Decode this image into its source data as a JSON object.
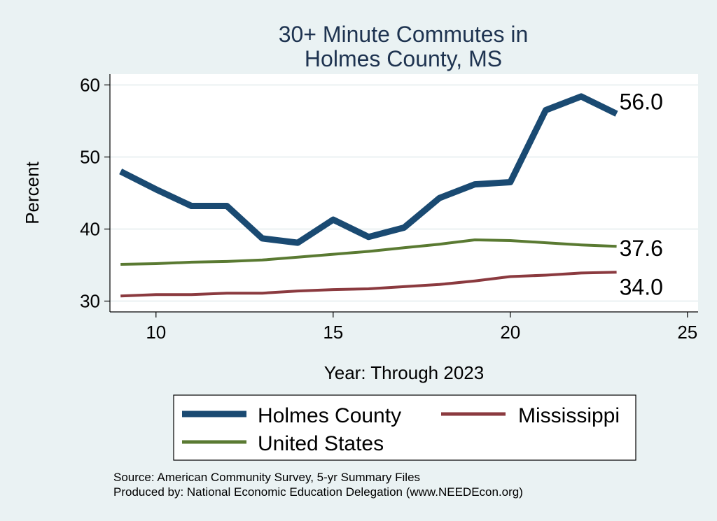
{
  "chart_data": {
    "type": "line",
    "title": [
      "30+ Minute Commutes in",
      "Holmes County, MS"
    ],
    "xlabel": "Year: Through 2023",
    "ylabel": "Percent",
    "xlim": [
      8.7,
      25.3
    ],
    "ylim": [
      28.5,
      61.5
    ],
    "xticks": [
      10,
      15,
      20,
      25
    ],
    "yticks": [
      30,
      40,
      50,
      60
    ],
    "x": [
      9,
      10,
      11,
      12,
      13,
      14,
      15,
      16,
      17,
      18,
      19,
      20,
      21,
      22,
      23
    ],
    "series": [
      {
        "name": "Holmes County",
        "color": "#1a4a72",
        "values": [
          48.0,
          45.5,
          43.2,
          43.2,
          38.7,
          38.1,
          41.3,
          38.9,
          40.2,
          44.3,
          46.2,
          46.5,
          56.5,
          58.4,
          56.0
        ],
        "end_label": "56.0"
      },
      {
        "name": "Mississippi",
        "color": "#8b3a3f",
        "values": [
          30.7,
          30.9,
          30.9,
          31.1,
          31.1,
          31.4,
          31.6,
          31.7,
          32.0,
          32.3,
          32.8,
          33.4,
          33.6,
          33.9,
          34.0
        ],
        "end_label": "34.0"
      },
      {
        "name": "United States",
        "color": "#5a7a32",
        "values": [
          35.1,
          35.2,
          35.4,
          35.5,
          35.7,
          36.1,
          36.5,
          36.9,
          37.4,
          37.9,
          38.5,
          38.4,
          38.1,
          37.8,
          37.6
        ],
        "end_label": "37.6"
      }
    ],
    "legend": {
      "placement": "bottom",
      "entries": [
        "Holmes County",
        "Mississippi",
        "United States"
      ]
    }
  },
  "source": {
    "line1": "Source: American Community Survey, 5-yr Summary Files",
    "line2": "Produced by: National Economic Education Delegation (www.NEEDEcon.org)"
  }
}
